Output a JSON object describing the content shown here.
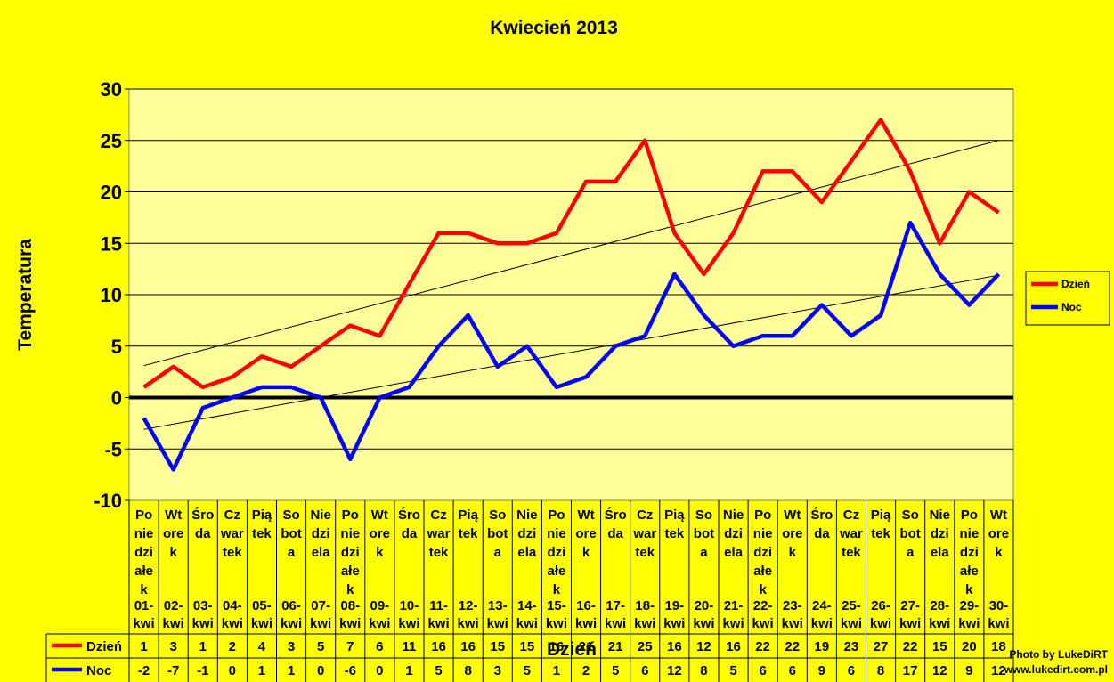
{
  "chart_data": {
    "type": "line",
    "title": "Kwiecień 2013",
    "xlabel": "Dzień",
    "ylabel": "Temperatura",
    "ylim": [
      -10,
      30
    ],
    "yticks": [
      -10,
      -5,
      0,
      5,
      10,
      15,
      20,
      25,
      30
    ],
    "grid": true,
    "legend_position": "right",
    "categories": [
      {
        "day": "Po nie dzi ałe k",
        "date": "01-kwi"
      },
      {
        "day": "Wt ore k",
        "date": "02-kwi"
      },
      {
        "day": "Śro da",
        "date": "03-kwi"
      },
      {
        "day": "Cz war tek",
        "date": "04-kwi"
      },
      {
        "day": "Pią tek",
        "date": "05-kwi"
      },
      {
        "day": "So bot a",
        "date": "06-kwi"
      },
      {
        "day": "Nie dzi ela",
        "date": "07-kwi"
      },
      {
        "day": "Po nie dzi ałe k",
        "date": "08-kwi"
      },
      {
        "day": "Wt ore k",
        "date": "09-kwi"
      },
      {
        "day": "Śro da",
        "date": "10-kwi"
      },
      {
        "day": "Cz war tek",
        "date": "11-kwi"
      },
      {
        "day": "Pią tek",
        "date": "12-kwi"
      },
      {
        "day": "So bot a",
        "date": "13-kwi"
      },
      {
        "day": "Nie dzi ela",
        "date": "14-kwi"
      },
      {
        "day": "Po nie dzi ałe k",
        "date": "15-kwi"
      },
      {
        "day": "Wt ore k",
        "date": "16-kwi"
      },
      {
        "day": "Śro da",
        "date": "17-kwi"
      },
      {
        "day": "Cz war tek",
        "date": "18-kwi"
      },
      {
        "day": "Pią tek",
        "date": "19-kwi"
      },
      {
        "day": "So bot a",
        "date": "20-kwi"
      },
      {
        "day": "Nie dzi ela",
        "date": "21-kwi"
      },
      {
        "day": "Po nie dzi ałe k",
        "date": "22-kwi"
      },
      {
        "day": "Wt ore k",
        "date": "23-kwi"
      },
      {
        "day": "Śro da",
        "date": "24-kwi"
      },
      {
        "day": "Cz war tek",
        "date": "25-kwi"
      },
      {
        "day": "Pią tek",
        "date": "26-kwi"
      },
      {
        "day": "So bot a",
        "date": "27-kwi"
      },
      {
        "day": "Nie dzi ela",
        "date": "28-kwi"
      },
      {
        "day": "Po nie dzi ałe k",
        "date": "29-kwi"
      },
      {
        "day": "Wt ore k",
        "date": "30-kwi"
      }
    ],
    "series": [
      {
        "name": "Dzień",
        "color": "#ff0000",
        "values": [
          1,
          3,
          1,
          2,
          4,
          3,
          5,
          7,
          6,
          11,
          16,
          16,
          15,
          15,
          16,
          21,
          21,
          25,
          16,
          12,
          16,
          22,
          22,
          19,
          23,
          27,
          22,
          15,
          20,
          18
        ],
        "trendline": [
          3.1,
          25.0
        ]
      },
      {
        "name": "Noc",
        "color": "#0000ff",
        "values": [
          -2,
          -7,
          -1,
          0,
          1,
          1,
          0,
          -6,
          0,
          1,
          5,
          8,
          3,
          5,
          1,
          2,
          5,
          6,
          12,
          8,
          5,
          6,
          6,
          9,
          6,
          8,
          17,
          12,
          9,
          12
        ],
        "trendline": [
          -3.1,
          11.9
        ]
      }
    ]
  },
  "credit": {
    "line1": "Photo by LukeDiRT",
    "line2": "www.lukedirt.com.pl"
  }
}
